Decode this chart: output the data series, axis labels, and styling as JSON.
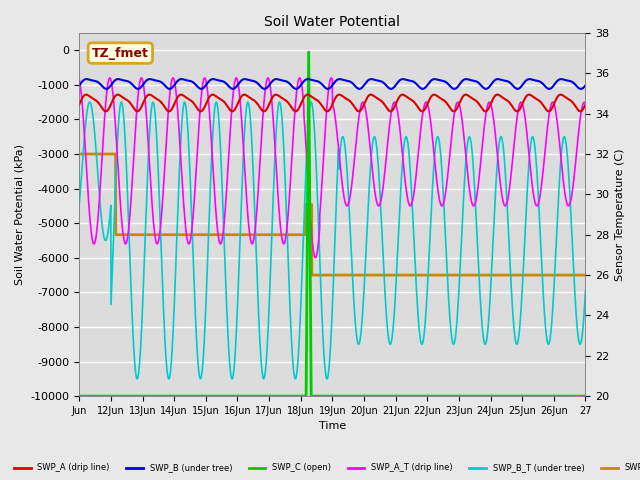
{
  "title": "Soil Water Potential",
  "ylabel_left": "Soil Water Potential (kPa)",
  "ylabel_right": "Sensor Temperature (C)",
  "xlabel": "Time",
  "annotation_label": "TZ_fmet",
  "ylim_left": [
    -10000,
    500
  ],
  "ylim_right": [
    20,
    38
  ],
  "bg_color": "#e8e8e8",
  "plot_bg_color": "#dcdcdc",
  "grid_color": "white",
  "series": {
    "SWP_A": {
      "color": "#dd0000",
      "label": "SWP_A (drip line)"
    },
    "SWP_B": {
      "color": "#0000dd",
      "label": "SWP_B (under tree)"
    },
    "SWP_C": {
      "color": "#00cc00",
      "label": "SWP_C (open)"
    },
    "SWP_A_T": {
      "color": "#ff00ff",
      "label": "SWP_A_T (drip line)"
    },
    "SWP_B_T": {
      "color": "#00cccc",
      "label": "SWP_B_T (under tree)"
    },
    "SWP_temp": {
      "color": "#cc8800",
      "label": "SWP"
    }
  },
  "xtick_labels": [
    "Jun",
    "12Jun",
    "13Jun",
    "14Jun",
    "15Jun",
    "16Jun",
    "17Jun",
    "18Jun",
    "19Jun",
    "20Jun",
    "21Jun",
    "22Jun",
    "23Jun",
    "24Jun",
    "25Jun",
    "26Jun",
    "27"
  ],
  "ytick_left": [
    0,
    -1000,
    -2000,
    -3000,
    -4000,
    -5000,
    -6000,
    -7000,
    -8000,
    -9000,
    -10000
  ],
  "ytick_right": [
    20,
    22,
    24,
    26,
    28,
    30,
    32,
    34,
    36,
    38
  ]
}
